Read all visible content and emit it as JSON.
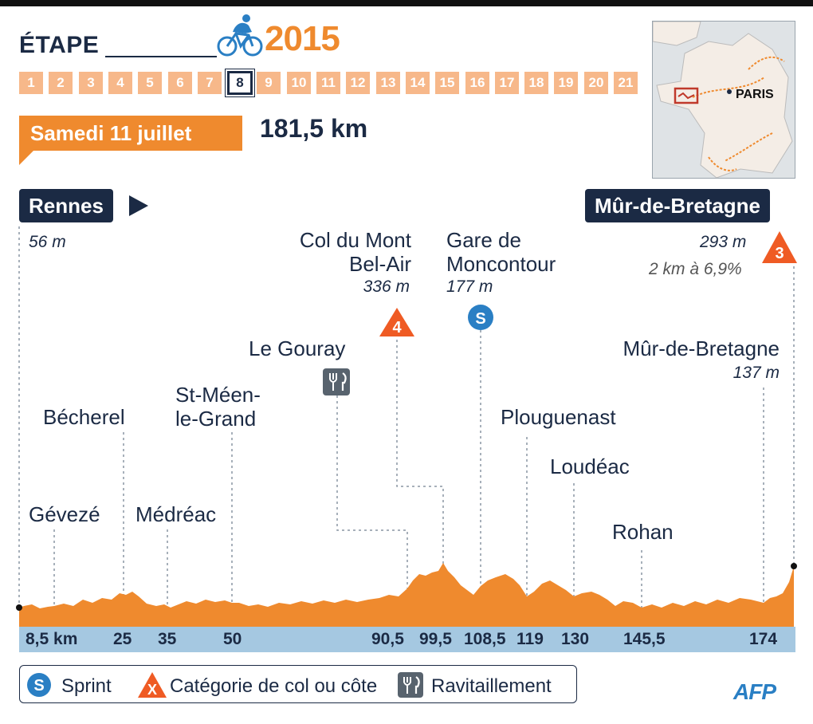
{
  "header": {
    "etape_label": "ÉTAPE",
    "year": "2015",
    "stages": [
      "1",
      "2",
      "3",
      "4",
      "5",
      "6",
      "7",
      "8",
      "9",
      "10",
      "11",
      "12",
      "13",
      "14",
      "15",
      "16",
      "17",
      "18",
      "19",
      "20",
      "21"
    ],
    "active_stage": "8",
    "date": "Samedi 11 juillet",
    "distance": "181,5 km"
  },
  "map": {
    "label": "PARIS"
  },
  "route": {
    "start": {
      "city": "Rennes",
      "altitude": "56 m"
    },
    "finish": {
      "city": "Mûr-de-Bretagne",
      "altitude": "293 m",
      "climb_detail": "2 km à 6,9%",
      "category": "3"
    }
  },
  "points": [
    {
      "name": "Gévezé",
      "km": "8,5 km"
    },
    {
      "name": "Bécherel",
      "km": "25"
    },
    {
      "name": "Médréac",
      "km": "35"
    },
    {
      "name": "St-Méen-le-Grand",
      "line1": "St-Méen-",
      "line2": "le-Grand",
      "km": "50"
    },
    {
      "name": "Le Gouray",
      "km": "90,5",
      "type": "ravitaillement"
    },
    {
      "name": "Col du Mont Bel-Air",
      "line1": "Col du Mont",
      "line2": "Bel-Air",
      "altitude": "336 m",
      "category": "4",
      "km": "99,5"
    },
    {
      "name": "Gare de Moncontour",
      "line1": "Gare de",
      "line2": "Moncontour",
      "altitude": "177 m",
      "type": "sprint",
      "badge": "S",
      "km": "108,5"
    },
    {
      "name": "Plouguenast",
      "km": "119"
    },
    {
      "name": "Loudéac",
      "km": "130"
    },
    {
      "name": "Rohan",
      "km": "145,5"
    },
    {
      "name": "Mûr-de-Bretagne",
      "altitude": "137 m",
      "km": "174"
    }
  ],
  "legend": {
    "sprint_badge": "S",
    "sprint": "Sprint",
    "col_badge": "X",
    "col": "Catégorie de col ou côte",
    "ravito": "Ravitaillement"
  },
  "credit": "AFP",
  "colors": {
    "navy": "#1b2a44",
    "orange": "#ef8a2e",
    "light_orange": "#f7b88a",
    "blue": "#2a7fc4",
    "km_bar": "#a5c8e1"
  }
}
